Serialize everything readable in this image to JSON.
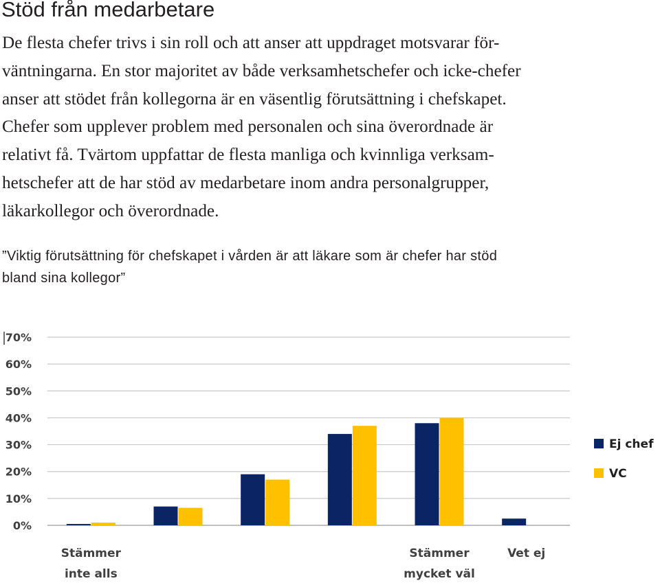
{
  "heading": "Stöd från medarbetare",
  "body_lines": [
    "De flesta chefer trivs i sin roll och att anser att uppdraget motsvarar för-",
    "väntningarna. En stor majoritet av både verksamhetschefer och icke-chefer",
    "anser att stödet från kollegorna är en väsentlig förutsättning i chefskapet.",
    "Chefer som upplever problem med personalen och sina överordnade är",
    "relativt få. Tvärtom uppfattar de flesta manliga och kvinnliga verksam-",
    "hetschefer att de har stöd av medarbetare inom andra personalgrupper,",
    "läkarkollegor och överordnade."
  ],
  "caption_lines": [
    "”Viktig förutsättning för chefskapet i vården är att läkare som är chefer har stöd",
    "bland sina kollegor”"
  ],
  "chart_data": {
    "type": "bar",
    "title": "",
    "xlabel": "",
    "ylabel": "",
    "categories": [
      [
        "Stämmer",
        "inte alls"
      ],
      [],
      [],
      [],
      [
        "Stämmer",
        "mycket väl"
      ],
      [
        "Vet ej"
      ]
    ],
    "series": [
      {
        "name": "Ej chef",
        "color": "#0b2464",
        "values": [
          0.5,
          7,
          19,
          34,
          38,
          2.5
        ]
      },
      {
        "name": "VC",
        "color": "#ffc000",
        "values": [
          1,
          6.5,
          17,
          37,
          40,
          0
        ]
      }
    ],
    "y_ticks": [
      "0%",
      "10%",
      "20%",
      "30%",
      "40%",
      "50%",
      "60%",
      "70%"
    ],
    "ylim": [
      0,
      70
    ],
    "grid": true,
    "legend": "right"
  }
}
